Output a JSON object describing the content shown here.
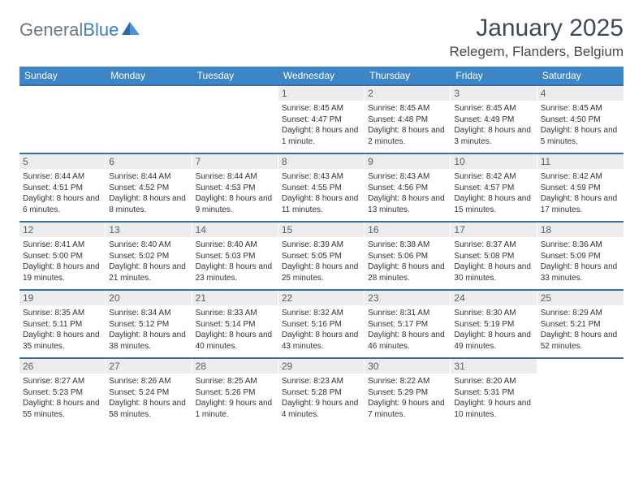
{
  "logo": {
    "textGray": "General",
    "textBlue": "Blue"
  },
  "title": "January 2025",
  "location": "Relegem, Flanders, Belgium",
  "colors": {
    "headerBar": "#3c85c6",
    "weekDivider": "#3c6fa0",
    "dayNumBg": "#ececec",
    "textDark": "#404a54"
  },
  "weekdays": [
    "Sunday",
    "Monday",
    "Tuesday",
    "Wednesday",
    "Thursday",
    "Friday",
    "Saturday"
  ],
  "weeks": [
    [
      {
        "num": "",
        "sunrise": "",
        "sunset": "",
        "daylight": ""
      },
      {
        "num": "",
        "sunrise": "",
        "sunset": "",
        "daylight": ""
      },
      {
        "num": "",
        "sunrise": "",
        "sunset": "",
        "daylight": ""
      },
      {
        "num": "1",
        "sunrise": "Sunrise: 8:45 AM",
        "sunset": "Sunset: 4:47 PM",
        "daylight": "Daylight: 8 hours and 1 minute."
      },
      {
        "num": "2",
        "sunrise": "Sunrise: 8:45 AM",
        "sunset": "Sunset: 4:48 PM",
        "daylight": "Daylight: 8 hours and 2 minutes."
      },
      {
        "num": "3",
        "sunrise": "Sunrise: 8:45 AM",
        "sunset": "Sunset: 4:49 PM",
        "daylight": "Daylight: 8 hours and 3 minutes."
      },
      {
        "num": "4",
        "sunrise": "Sunrise: 8:45 AM",
        "sunset": "Sunset: 4:50 PM",
        "daylight": "Daylight: 8 hours and 5 minutes."
      }
    ],
    [
      {
        "num": "5",
        "sunrise": "Sunrise: 8:44 AM",
        "sunset": "Sunset: 4:51 PM",
        "daylight": "Daylight: 8 hours and 6 minutes."
      },
      {
        "num": "6",
        "sunrise": "Sunrise: 8:44 AM",
        "sunset": "Sunset: 4:52 PM",
        "daylight": "Daylight: 8 hours and 8 minutes."
      },
      {
        "num": "7",
        "sunrise": "Sunrise: 8:44 AM",
        "sunset": "Sunset: 4:53 PM",
        "daylight": "Daylight: 8 hours and 9 minutes."
      },
      {
        "num": "8",
        "sunrise": "Sunrise: 8:43 AM",
        "sunset": "Sunset: 4:55 PM",
        "daylight": "Daylight: 8 hours and 11 minutes."
      },
      {
        "num": "9",
        "sunrise": "Sunrise: 8:43 AM",
        "sunset": "Sunset: 4:56 PM",
        "daylight": "Daylight: 8 hours and 13 minutes."
      },
      {
        "num": "10",
        "sunrise": "Sunrise: 8:42 AM",
        "sunset": "Sunset: 4:57 PM",
        "daylight": "Daylight: 8 hours and 15 minutes."
      },
      {
        "num": "11",
        "sunrise": "Sunrise: 8:42 AM",
        "sunset": "Sunset: 4:59 PM",
        "daylight": "Daylight: 8 hours and 17 minutes."
      }
    ],
    [
      {
        "num": "12",
        "sunrise": "Sunrise: 8:41 AM",
        "sunset": "Sunset: 5:00 PM",
        "daylight": "Daylight: 8 hours and 19 minutes."
      },
      {
        "num": "13",
        "sunrise": "Sunrise: 8:40 AM",
        "sunset": "Sunset: 5:02 PM",
        "daylight": "Daylight: 8 hours and 21 minutes."
      },
      {
        "num": "14",
        "sunrise": "Sunrise: 8:40 AM",
        "sunset": "Sunset: 5:03 PM",
        "daylight": "Daylight: 8 hours and 23 minutes."
      },
      {
        "num": "15",
        "sunrise": "Sunrise: 8:39 AM",
        "sunset": "Sunset: 5:05 PM",
        "daylight": "Daylight: 8 hours and 25 minutes."
      },
      {
        "num": "16",
        "sunrise": "Sunrise: 8:38 AM",
        "sunset": "Sunset: 5:06 PM",
        "daylight": "Daylight: 8 hours and 28 minutes."
      },
      {
        "num": "17",
        "sunrise": "Sunrise: 8:37 AM",
        "sunset": "Sunset: 5:08 PM",
        "daylight": "Daylight: 8 hours and 30 minutes."
      },
      {
        "num": "18",
        "sunrise": "Sunrise: 8:36 AM",
        "sunset": "Sunset: 5:09 PM",
        "daylight": "Daylight: 8 hours and 33 minutes."
      }
    ],
    [
      {
        "num": "19",
        "sunrise": "Sunrise: 8:35 AM",
        "sunset": "Sunset: 5:11 PM",
        "daylight": "Daylight: 8 hours and 35 minutes."
      },
      {
        "num": "20",
        "sunrise": "Sunrise: 8:34 AM",
        "sunset": "Sunset: 5:12 PM",
        "daylight": "Daylight: 8 hours and 38 minutes."
      },
      {
        "num": "21",
        "sunrise": "Sunrise: 8:33 AM",
        "sunset": "Sunset: 5:14 PM",
        "daylight": "Daylight: 8 hours and 40 minutes."
      },
      {
        "num": "22",
        "sunrise": "Sunrise: 8:32 AM",
        "sunset": "Sunset: 5:16 PM",
        "daylight": "Daylight: 8 hours and 43 minutes."
      },
      {
        "num": "23",
        "sunrise": "Sunrise: 8:31 AM",
        "sunset": "Sunset: 5:17 PM",
        "daylight": "Daylight: 8 hours and 46 minutes."
      },
      {
        "num": "24",
        "sunrise": "Sunrise: 8:30 AM",
        "sunset": "Sunset: 5:19 PM",
        "daylight": "Daylight: 8 hours and 49 minutes."
      },
      {
        "num": "25",
        "sunrise": "Sunrise: 8:29 AM",
        "sunset": "Sunset: 5:21 PM",
        "daylight": "Daylight: 8 hours and 52 minutes."
      }
    ],
    [
      {
        "num": "26",
        "sunrise": "Sunrise: 8:27 AM",
        "sunset": "Sunset: 5:23 PM",
        "daylight": "Daylight: 8 hours and 55 minutes."
      },
      {
        "num": "27",
        "sunrise": "Sunrise: 8:26 AM",
        "sunset": "Sunset: 5:24 PM",
        "daylight": "Daylight: 8 hours and 58 minutes."
      },
      {
        "num": "28",
        "sunrise": "Sunrise: 8:25 AM",
        "sunset": "Sunset: 5:26 PM",
        "daylight": "Daylight: 9 hours and 1 minute."
      },
      {
        "num": "29",
        "sunrise": "Sunrise: 8:23 AM",
        "sunset": "Sunset: 5:28 PM",
        "daylight": "Daylight: 9 hours and 4 minutes."
      },
      {
        "num": "30",
        "sunrise": "Sunrise: 8:22 AM",
        "sunset": "Sunset: 5:29 PM",
        "daylight": "Daylight: 9 hours and 7 minutes."
      },
      {
        "num": "31",
        "sunrise": "Sunrise: 8:20 AM",
        "sunset": "Sunset: 5:31 PM",
        "daylight": "Daylight: 9 hours and 10 minutes."
      },
      {
        "num": "",
        "sunrise": "",
        "sunset": "",
        "daylight": ""
      }
    ]
  ]
}
